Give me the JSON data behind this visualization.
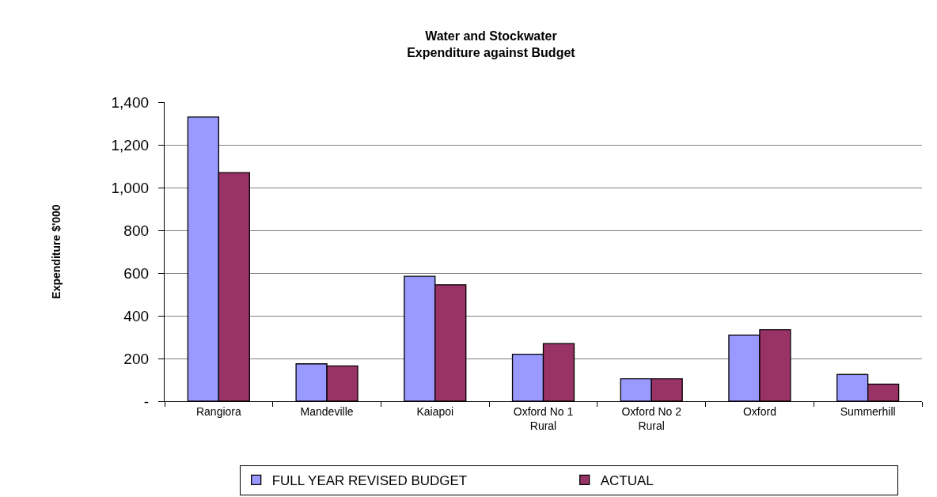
{
  "chart_data": {
    "type": "bar",
    "title": "Water and Stockwater\nExpenditure against Budget",
    "ylabel": "Expenditure $'000",
    "categories": [
      "Rangiora",
      "Mandeville",
      "Kaiapoi",
      "Oxford No 1 Rural",
      "Oxford No 2 Rural",
      "Oxford",
      "Summerhill"
    ],
    "series": [
      {
        "name": "FULL YEAR REVISED BUDGET",
        "color": "#9999ff",
        "values": [
          1330,
          175,
          585,
          220,
          105,
          310,
          125
        ]
      },
      {
        "name": "ACTUAL",
        "color": "#993366",
        "values": [
          1070,
          165,
          545,
          270,
          105,
          335,
          80
        ]
      }
    ],
    "ylim": [
      0,
      1400
    ],
    "yticks": [
      {
        "value": 0,
        "label": "-"
      },
      {
        "value": 200,
        "label": "200"
      },
      {
        "value": 400,
        "label": "400"
      },
      {
        "value": 600,
        "label": "600"
      },
      {
        "value": 800,
        "label": "800"
      },
      {
        "value": 1000,
        "label": "1,000"
      },
      {
        "value": 1200,
        "label": "1,200"
      },
      {
        "value": 1400,
        "label": "1,400"
      }
    ],
    "grid": "y",
    "legend": "bottom"
  }
}
